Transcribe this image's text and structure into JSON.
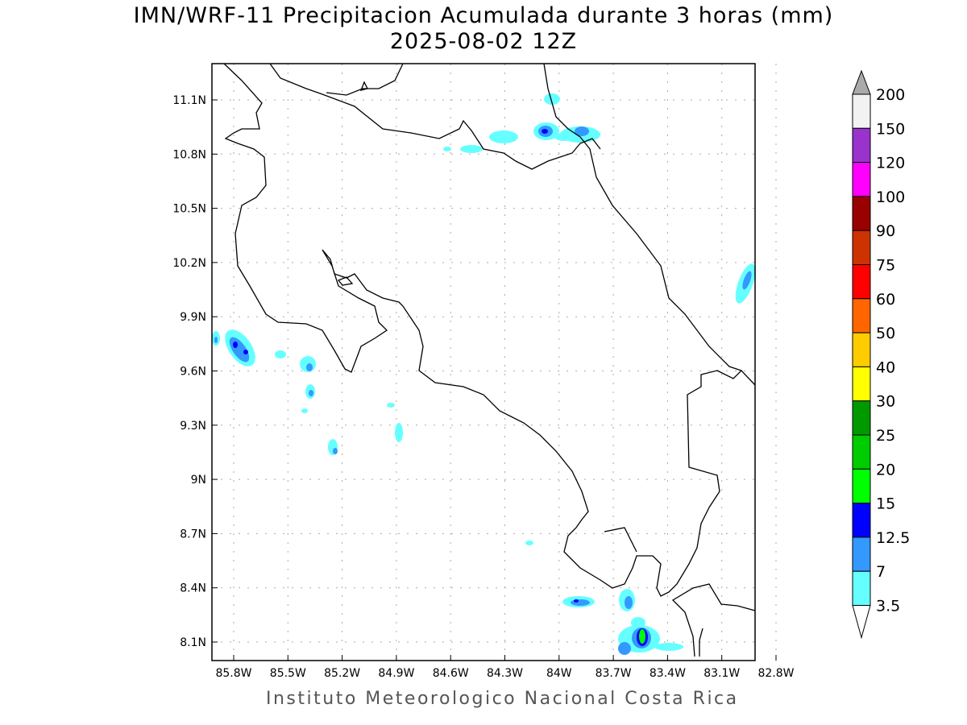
{
  "title": "IMN/WRF-11 Precipitacion Acumulada durante 3 horas (mm)",
  "subtitle": "2025-08-02 12Z",
  "footer": "Instituto Meteorologico Nacional Costa Rica",
  "lat_ticks": [
    "11.1N",
    "10.8N",
    "10.5N",
    "10.2N",
    "9.9N",
    "9.6N",
    "9.3N",
    "9N",
    "8.7N",
    "8.4N",
    "8.1N"
  ],
  "lon_ticks": [
    "85.8W",
    "85.5W",
    "85.2W",
    "84.9W",
    "84.6W",
    "84.3W",
    "84W",
    "83.7W",
    "83.4W",
    "83.1W",
    "82.8W"
  ],
  "colorbar": {
    "labels": [
      "200",
      "150",
      "120",
      "100",
      "90",
      "75",
      "60",
      "50",
      "40",
      "30",
      "25",
      "20",
      "15",
      "12.5",
      "7",
      "3.5"
    ],
    "colors": [
      "#f2f2f2",
      "#9933cc",
      "#ff00ff",
      "#990000",
      "#cc3300",
      "#ff0000",
      "#ff6600",
      "#ffcc00",
      "#ffff00",
      "#009900",
      "#00cc00",
      "#00ff00",
      "#0000ff",
      "#3399ff",
      "#66ffff"
    ],
    "over_color": "#aaaaaa",
    "under_color": "#ffffff"
  }
}
